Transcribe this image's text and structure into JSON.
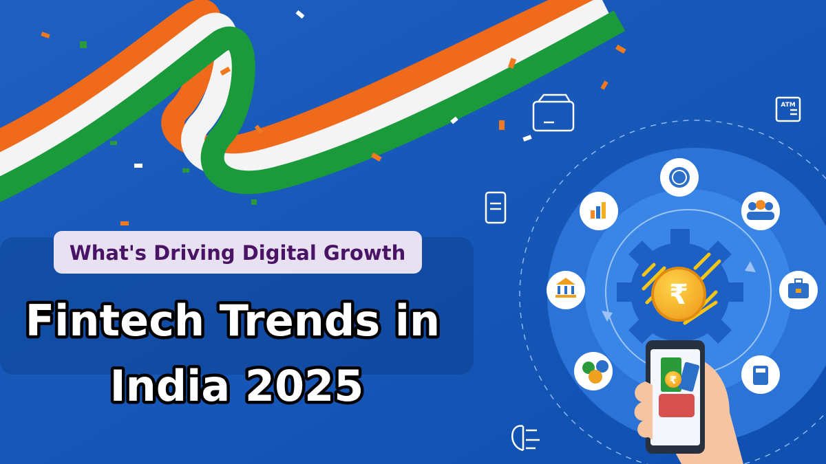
{
  "subtitle": "What's Driving Digital Growth",
  "title_lines": [
    "Fintech Trends in",
    "India 2025"
  ],
  "icon_labels": {
    "atm": "ATM",
    "rupee": "₹"
  }
}
